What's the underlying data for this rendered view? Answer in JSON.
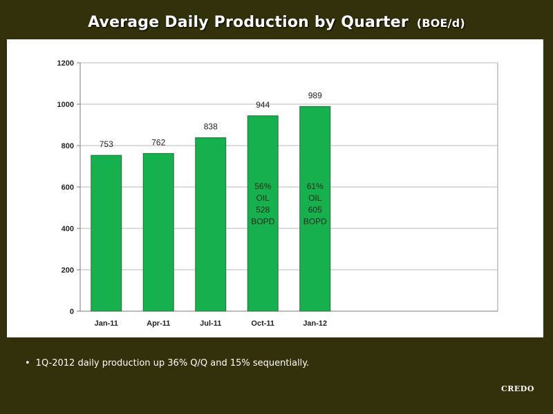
{
  "title": "Average Daily Production by Quarter",
  "title_unit": "(BOE/d)",
  "bullet": "1Q-2012 daily production up 36% Q/Q and 15% sequentially.",
  "logo": "CREDO",
  "colors": {
    "background": "#33310b",
    "bar": "#16b04f",
    "bar_stroke": "#2e6b3e",
    "panel": "#ffffff",
    "plot_bg": "#ffffff"
  },
  "chart_data": {
    "type": "bar",
    "categories": [
      "Jan-11",
      "Apr-11",
      "Jul-11",
      "Oct-11",
      "Jan-12"
    ],
    "values": [
      753,
      762,
      838,
      944,
      989
    ],
    "data_labels": [
      "753",
      "762",
      "838",
      "944",
      "989"
    ],
    "bar_annotations": [
      null,
      null,
      null,
      [
        "56%",
        "OIL",
        "528",
        "BOPD"
      ],
      [
        "61%",
        "OIL",
        "605",
        "BOPD"
      ]
    ],
    "ylim": [
      0,
      1200
    ],
    "yticks": [
      0,
      200,
      400,
      600,
      800,
      1000,
      1200
    ],
    "grid": true,
    "legend": "none"
  }
}
